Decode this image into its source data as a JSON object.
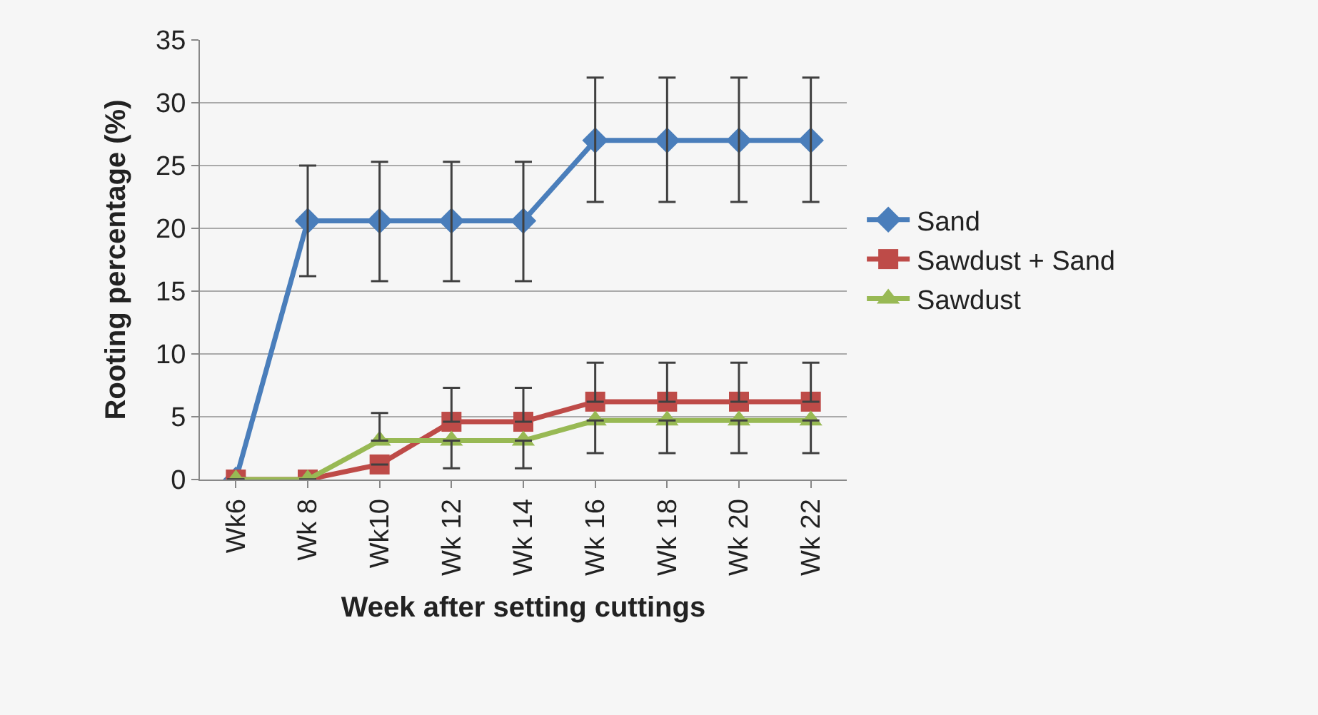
{
  "chart_data": {
    "type": "line",
    "xlabel": "Week after setting cuttings",
    "ylabel": "Rooting percentage (%)",
    "categories": [
      "Wk6",
      "Wk 8",
      "Wk10",
      "Wk 12",
      "Wk 14",
      "Wk 16",
      "Wk 18",
      "Wk 20",
      "Wk 22"
    ],
    "series": [
      {
        "name": "Sand",
        "color": "#4a7ebb",
        "marker": "diamond",
        "values": [
          0,
          20.6,
          20.6,
          20.6,
          20.6,
          27,
          27,
          27,
          27
        ],
        "errors": [
          null,
          [
            16.2,
            25
          ],
          [
            15.8,
            25.3
          ],
          [
            15.8,
            25.3
          ],
          [
            15.8,
            25.3
          ],
          [
            22.1,
            32
          ],
          [
            22.1,
            32
          ],
          [
            22.1,
            32
          ],
          [
            22.1,
            32
          ]
        ]
      },
      {
        "name": "Sawdust + Sand",
        "color": "#be4b48",
        "marker": "square",
        "values": [
          0,
          0,
          1.2,
          4.6,
          4.6,
          6.2,
          6.2,
          6.2,
          6.2
        ],
        "errors": [
          null,
          null,
          null,
          [
            4.6,
            7.3
          ],
          [
            4.6,
            7.3
          ],
          [
            6.2,
            9.3
          ],
          [
            6.2,
            9.3
          ],
          [
            6.2,
            9.3
          ],
          [
            6.2,
            9.3
          ]
        ]
      },
      {
        "name": "Sawdust",
        "color": "#98b954",
        "marker": "triangle",
        "values": [
          0,
          0,
          3.1,
          3.1,
          3.1,
          4.7,
          4.7,
          4.7,
          4.7
        ],
        "errors": [
          null,
          null,
          [
            3.1,
            5.3
          ],
          [
            0.9,
            3.1
          ],
          [
            0.9,
            3.1
          ],
          [
            2.1,
            4.7
          ],
          [
            2.1,
            4.7
          ],
          [
            2.1,
            4.7
          ],
          [
            2.1,
            4.7
          ]
        ]
      }
    ],
    "ylim": [
      0,
      35
    ],
    "yticks": [
      0,
      5,
      10,
      15,
      20,
      25,
      30,
      35
    ],
    "grid": "y",
    "legend": "right"
  }
}
